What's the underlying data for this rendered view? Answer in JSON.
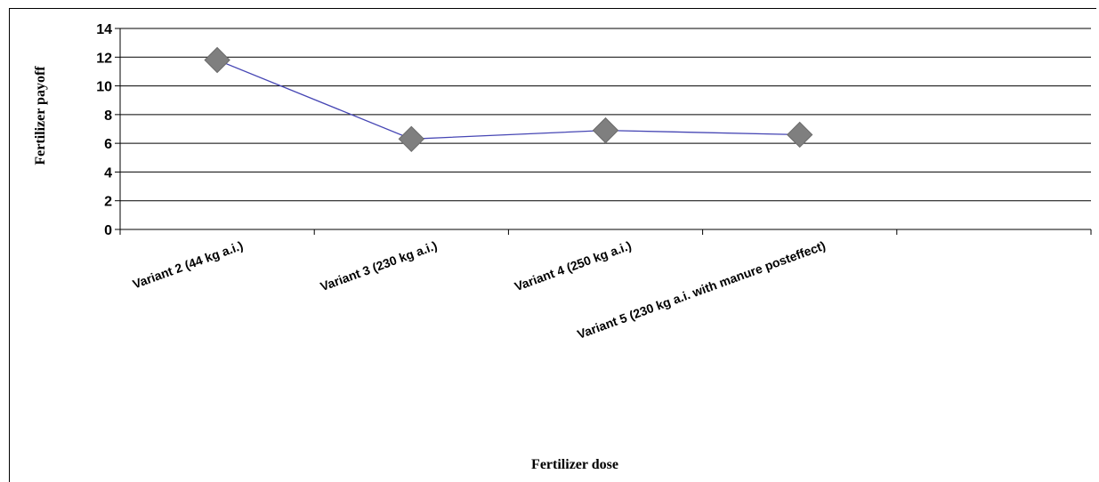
{
  "chart_data": {
    "type": "line",
    "title": "",
    "xlabel": "Fertilizer dose",
    "ylabel": "Fertilizer payoff",
    "categories": [
      "Variant 2 (44 kg a.i.)",
      "Variant 3 (230 kg a.i.)",
      "Variant 4 (250 kg a.i.)",
      "Variant 5 (230 kg a.i. with manure posteffect)"
    ],
    "series": [
      {
        "values": [
          11.8,
          6.3,
          6.9,
          6.6
        ]
      }
    ],
    "y_ticks": [
      "0",
      "2",
      "4",
      "6",
      "8",
      "10",
      "12",
      "14"
    ],
    "ylim": [
      0,
      14
    ],
    "grid": true,
    "legend": "none",
    "colors": {
      "line": "#4646b4",
      "marker": "#7f7f7f",
      "grid": "#000000"
    }
  }
}
